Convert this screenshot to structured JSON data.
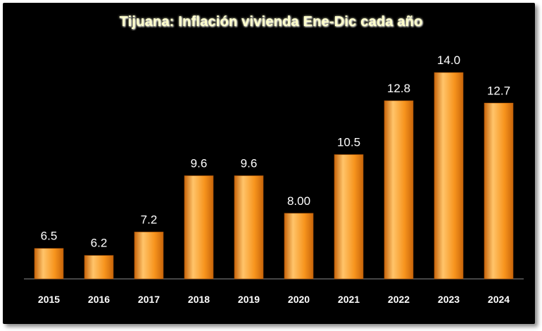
{
  "chart_data": {
    "type": "bar",
    "title": "Tijuana: Inflación vivienda Ene-Dic cada año",
    "xlabel": "",
    "ylabel": "",
    "categories": [
      "2015",
      "2016",
      "2017",
      "2018",
      "2019",
      "2020",
      "2021",
      "2022",
      "2023",
      "2024"
    ],
    "values": [
      6.5,
      6.2,
      7.2,
      9.6,
      9.6,
      8.0,
      10.5,
      12.8,
      14.0,
      12.7
    ],
    "data_labels": [
      "6.5",
      "6.2",
      "7.2",
      "9.6",
      "9.6",
      "8.00",
      "10.5",
      "12.8",
      "14.0",
      "12.7"
    ],
    "ylim": [
      5.2,
      14.0
    ],
    "grid": false,
    "legend": "none",
    "colors": {
      "background": "#000000",
      "bar_light": "#ffc46a",
      "bar_mid": "#f7941d",
      "bar_dark": "#c8650a",
      "text": "#ffffff",
      "title": "#ffffcc",
      "axis": "#8c8c8c"
    }
  }
}
